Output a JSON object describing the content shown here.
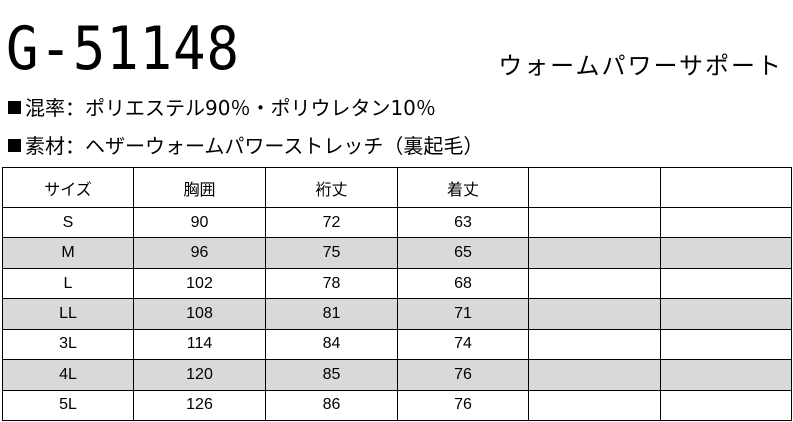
{
  "header": {
    "model_number": "G-51148",
    "product_name": "ウォームパワーサポート"
  },
  "specs": {
    "material": "混率：ポリエステル90％・ポリウレタン10％",
    "fabric": "素材：ヘザーウォームパワーストレッチ（裏起毛）"
  },
  "size_table": {
    "headers": [
      "サイズ",
      "胸囲",
      "裄丈",
      "着丈",
      "",
      ""
    ],
    "rows": [
      {
        "size": "S",
        "chest": "90",
        "sleeve": "72",
        "length": "63"
      },
      {
        "size": "M",
        "chest": "96",
        "sleeve": "75",
        "length": "65"
      },
      {
        "size": "L",
        "chest": "102",
        "sleeve": "78",
        "length": "68"
      },
      {
        "size": "LL",
        "chest": "108",
        "sleeve": "81",
        "length": "71"
      },
      {
        "size": "3L",
        "chest": "114",
        "sleeve": "84",
        "length": "74"
      },
      {
        "size": "4L",
        "chest": "120",
        "sleeve": "85",
        "length": "76"
      },
      {
        "size": "5L",
        "chest": "126",
        "sleeve": "86",
        "length": "76"
      }
    ],
    "shade_color": "#d9d9d9"
  }
}
